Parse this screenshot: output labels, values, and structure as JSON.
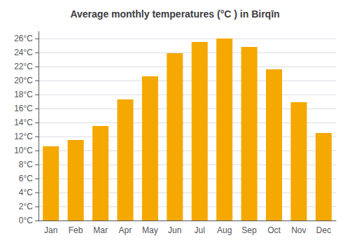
{
  "chart_data": {
    "type": "bar",
    "title": "Average monthly temperatures (°C ) in Birqīn",
    "categories": [
      "Jan",
      "Feb",
      "Mar",
      "Apr",
      "May",
      "Jun",
      "Jul",
      "Aug",
      "Sep",
      "Oct",
      "Nov",
      "Dec"
    ],
    "values": [
      10.6,
      11.5,
      13.5,
      17.3,
      20.6,
      23.9,
      25.5,
      26.0,
      24.8,
      21.6,
      16.9,
      12.5
    ],
    "color": "#F5A800",
    "ylim": [
      0,
      27
    ],
    "yticks": [
      {
        "value": 0,
        "label": "0°C"
      },
      {
        "value": 2,
        "label": "2°C"
      },
      {
        "value": 4,
        "label": "4°C"
      },
      {
        "value": 6,
        "label": "6°C"
      },
      {
        "value": 8,
        "label": "8°C"
      },
      {
        "value": 10,
        "label": "10°C"
      },
      {
        "value": 12,
        "label": "12°C"
      },
      {
        "value": 14,
        "label": "14°C"
      },
      {
        "value": 16,
        "label": "16°C"
      },
      {
        "value": 18,
        "label": "18°C"
      },
      {
        "value": 20,
        "label": "20°C"
      },
      {
        "value": 22,
        "label": "22°C"
      },
      {
        "value": 24,
        "label": "24°C"
      },
      {
        "value": 26,
        "label": "26°C"
      }
    ],
    "grid": true
  }
}
